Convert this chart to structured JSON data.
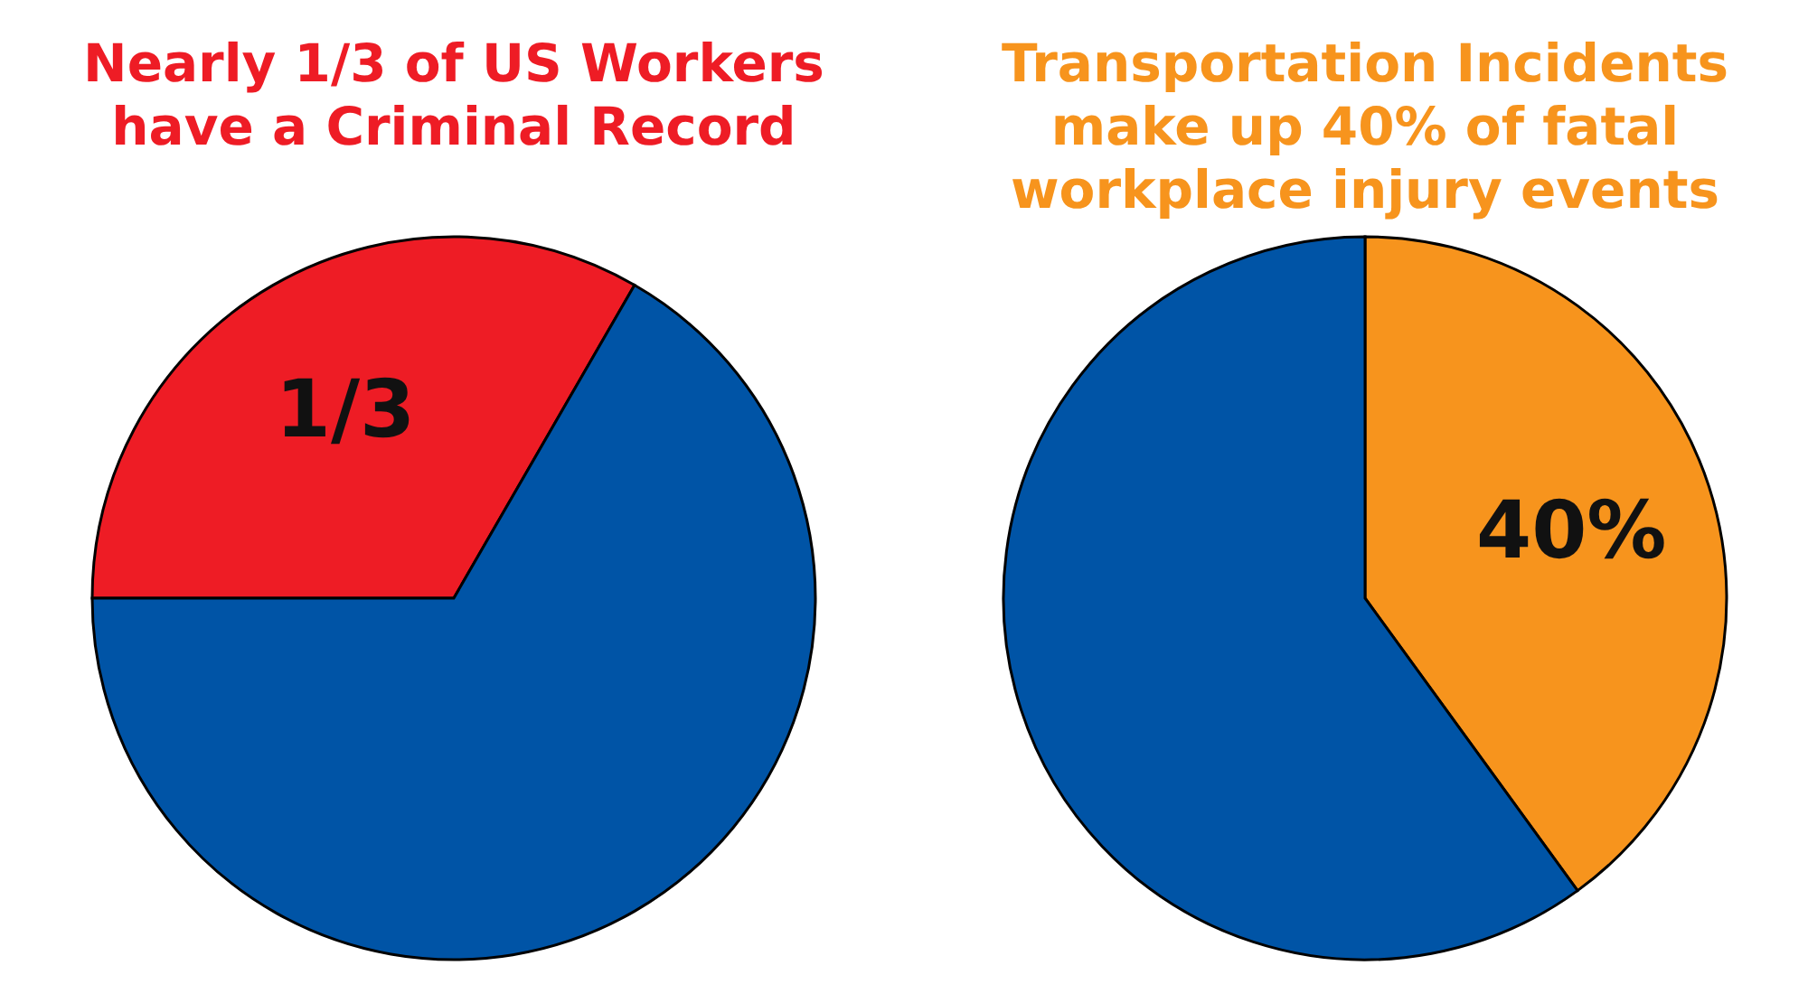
{
  "chart_data": [
    {
      "type": "pie",
      "title": "Nearly 1/3 of US Workers have a Criminal Record",
      "categories": [
        null,
        null
      ],
      "values": [
        0.3333,
        0.6667
      ],
      "colors": [
        "#ee1c25",
        "#0054a6"
      ],
      "value_labels": [
        "1/3",
        null
      ]
    },
    {
      "type": "pie",
      "title": "Transportation Incidents make up 40% of fatal workplace injury events",
      "categories": [
        null,
        null
      ],
      "values": [
        40,
        60
      ],
      "colors": [
        "#f7941d",
        "#0054a6"
      ],
      "value_labels": [
        "40%",
        null
      ]
    }
  ]
}
